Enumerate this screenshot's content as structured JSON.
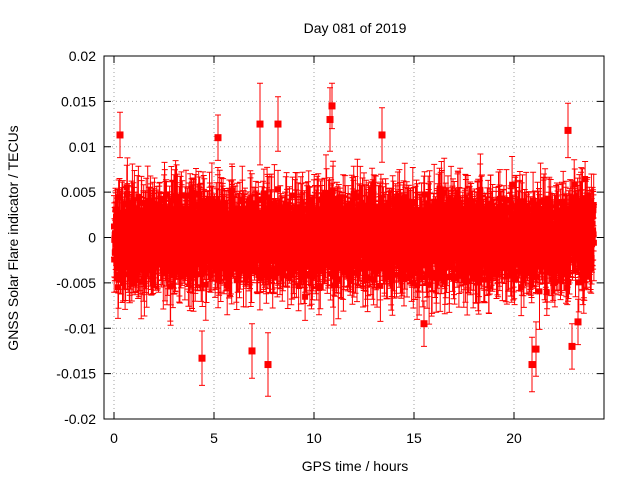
{
  "chart_data": {
    "type": "scatter",
    "title": "Day 081 of 2019",
    "xlabel": "GPS time / hours",
    "ylabel": "GNSS Solar Flare indicator / TECUs",
    "xlim": [
      -0.5,
      24.5
    ],
    "ylim": [
      -0.02,
      0.02
    ],
    "xticks": [
      0,
      5,
      10,
      15,
      20
    ],
    "xtick_labels": [
      "0",
      "5",
      "10",
      "15",
      "20"
    ],
    "yticks": [
      -0.02,
      -0.015,
      -0.01,
      -0.005,
      0,
      0.005,
      0.01,
      0.015,
      0.02
    ],
    "ytick_labels": [
      "-0.02",
      "-0.015",
      "-0.01",
      "-0.005",
      "0",
      "0.005",
      "0.01",
      "0.015",
      "0.02"
    ],
    "grid": true,
    "color": "#ff0000",
    "marker": "square-with-errorbars",
    "series": [
      {
        "name": "Solar flare indicator",
        "sampling_interval_hours": 0.0083,
        "time_range_hours": [
          0,
          24
        ],
        "typical_value_range": [
          -0.007,
          0.007
        ],
        "typical_error_bar": 0.003,
        "points": [
          {
            "x": 0.3,
            "y": 0.0113,
            "err": 0.0025
          },
          {
            "x": 4.4,
            "y": -0.0133,
            "err": 0.003
          },
          {
            "x": 5.2,
            "y": 0.011,
            "err": 0.0025
          },
          {
            "x": 6.9,
            "y": -0.0125,
            "err": 0.003
          },
          {
            "x": 7.3,
            "y": 0.0125,
            "err": 0.0045
          },
          {
            "x": 7.7,
            "y": -0.014,
            "err": 0.0035
          },
          {
            "x": 8.2,
            "y": 0.0125,
            "err": 0.003
          },
          {
            "x": 10.8,
            "y": 0.013,
            "err": 0.0035
          },
          {
            "x": 10.9,
            "y": 0.0145,
            "err": 0.0025
          },
          {
            "x": 13.4,
            "y": 0.0113,
            "err": 0.003
          },
          {
            "x": 15.5,
            "y": -0.0095,
            "err": 0.0025
          },
          {
            "x": 20.9,
            "y": -0.014,
            "err": 0.003
          },
          {
            "x": 21.1,
            "y": -0.0123,
            "err": 0.003
          },
          {
            "x": 22.7,
            "y": 0.0118,
            "err": 0.003
          },
          {
            "x": 23.2,
            "y": -0.0093,
            "err": 0.0025
          },
          {
            "x": 22.9,
            "y": -0.012,
            "err": 0.0025
          }
        ]
      }
    ]
  }
}
